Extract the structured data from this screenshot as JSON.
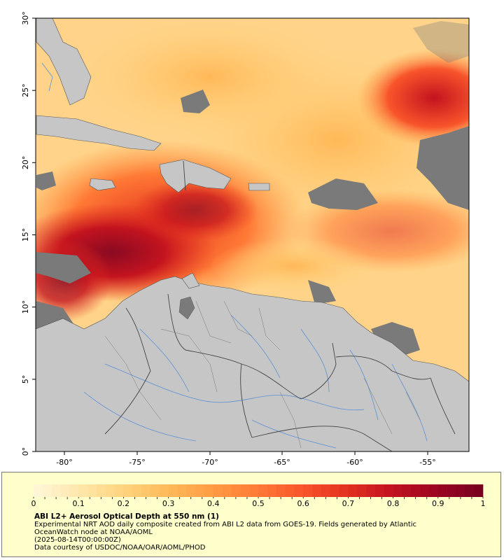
{
  "map": {
    "lon_ticks": [
      "-80°",
      "-75°",
      "-70°",
      "-65°",
      "-60°",
      "-55°"
    ],
    "lat_ticks": [
      "0°",
      "5°",
      "10°",
      "15°",
      "20°",
      "25°",
      "30°"
    ],
    "colors": {
      "land": "#c6c6c6",
      "no_data": "#7a7a7a",
      "rivers": "#5b8fd6",
      "borders": "#444444"
    }
  },
  "colorbar": {
    "ticks": [
      "0",
      "0.1",
      "0.2",
      "0.3",
      "0.4",
      "0.5",
      "0.6",
      "0.7",
      "0.8",
      "0.9",
      "1"
    ],
    "palette": [
      "#fff6d6",
      "#ffe6a8",
      "#ffd27c",
      "#ffb857",
      "#ff9a43",
      "#ff7a35",
      "#f8552b",
      "#e3311f",
      "#c3131f",
      "#9e0523",
      "#7a0020"
    ]
  },
  "caption": {
    "title": "ABI L2+ Aerosol Optical Depth at 550 nm (1)",
    "line1": "Experimental NRT AOD daily composite created from ABI L2 data from GOES-19. Fields generated by Atlantic",
    "line2": "OceanWatch node at NOAA/AOML",
    "line3": "(2025-08-14T00:00:00Z)",
    "line4": "Data courtesy of USDOC/NOAA/OAR/AOML/PHOD"
  }
}
